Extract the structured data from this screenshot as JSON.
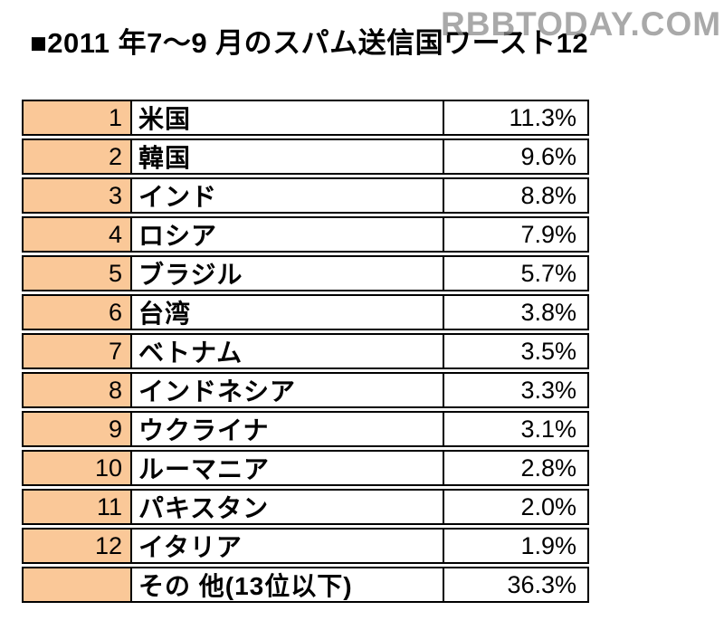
{
  "page": {
    "title": "■2011 年7～9 月のスパム送信国ワースト12",
    "watermark": "RBBTODAY.COM"
  },
  "colors": {
    "rank_cell_bg": "#FAC898",
    "table_border": "#000000",
    "watermark_gray": "#8C8C8C",
    "text": "#000000"
  },
  "table": {
    "rows": [
      {
        "rank": "1",
        "country": "米国",
        "share": "11.3%"
      },
      {
        "rank": "2",
        "country": "韓国",
        "share": "9.6%"
      },
      {
        "rank": "3",
        "country": "インド",
        "share": "8.8%"
      },
      {
        "rank": "4",
        "country": "ロシア",
        "share": "7.9%"
      },
      {
        "rank": "5",
        "country": "ブラジル",
        "share": "5.7%"
      },
      {
        "rank": "6",
        "country": "台湾",
        "share": "3.8%"
      },
      {
        "rank": "7",
        "country": "ベトナム",
        "share": "3.5%"
      },
      {
        "rank": "8",
        "country": "インドネシア",
        "share": "3.3%"
      },
      {
        "rank": "9",
        "country": "ウクライナ",
        "share": "3.1%"
      },
      {
        "rank": "10",
        "country": "ルーマニア",
        "share": "2.8%"
      },
      {
        "rank": "11",
        "country": "パキスタン",
        "share": "2.0%"
      },
      {
        "rank": "12",
        "country": "イタリア",
        "share": "1.9%"
      },
      {
        "rank": "",
        "country": "その 他(13位以下)",
        "share": "36.3%"
      }
    ]
  },
  "chart_data": {
    "type": "table",
    "title": "2011年7～9月のスパム送信国ワースト12",
    "columns": [
      "順位",
      "国名",
      "構成比"
    ],
    "categories": [
      "米国",
      "韓国",
      "インド",
      "ロシア",
      "ブラジル",
      "台湾",
      "ベトナム",
      "インドネシア",
      "ウクライナ",
      "ルーマニア",
      "パキスタン",
      "イタリア",
      "その他(13位以下)"
    ],
    "values": [
      11.3,
      9.6,
      8.8,
      7.9,
      5.7,
      3.8,
      3.5,
      3.3,
      3.1,
      2.8,
      2.0,
      1.9,
      36.3
    ],
    "unit": "%",
    "ranks": [
      1,
      2,
      3,
      4,
      5,
      6,
      7,
      8,
      9,
      10,
      11,
      12,
      null
    ]
  }
}
